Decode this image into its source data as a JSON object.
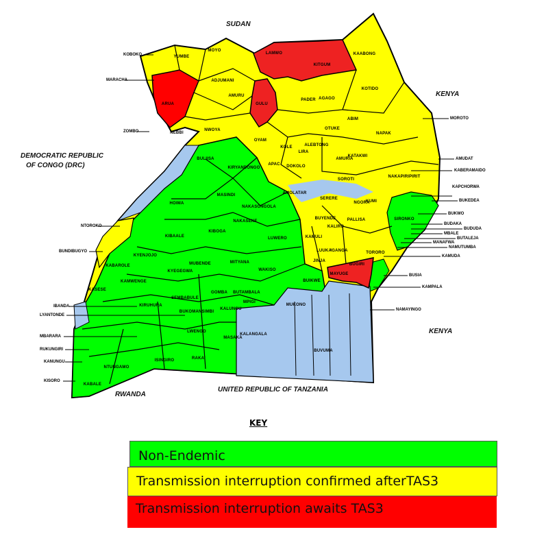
{
  "colors": {
    "non_endemic": "#00ff00",
    "confirmed": "#ffff00",
    "awaits": "#ff0000",
    "water": "#a6c8ee",
    "border": "#000000"
  },
  "countries": {
    "sudan": "SUDAN",
    "kenya_north": "KENYA",
    "kenya_south": "KENYA",
    "drc_line1": "DEMOCRATIC REPUBLIC",
    "drc_line2": "OF CONGO (DRC)",
    "tanzania": "UNITED REPUBLIC OF TANZANIA",
    "rwanda": "RWANDA"
  },
  "districts": [
    "YUMBE",
    "MOYO",
    "LAMWO",
    "KITGUM",
    "KAABONG",
    "ADJUMANI",
    "AMURU",
    "ARUA",
    "GULU",
    "NEBBI",
    "NWOYA",
    "PADER",
    "AGAGO",
    "KOTIDO",
    "ABIM",
    "OTUKE",
    "NAPAK",
    "OYAM",
    "KOLE",
    "LIRA",
    "ALEBTONG",
    "KATAKWI",
    "AMURIA",
    "APAC",
    "DOKOLO",
    "SOROTI",
    "NAKAPIRIPIRIT",
    "AMOLATAR",
    "SERERE",
    "NGORA",
    "KUMI",
    "BUYENDE",
    "PALLISA",
    "SIRONKO",
    "KALIRO",
    "KAMULI",
    "LUUKA",
    "IGANGA",
    "TORORO",
    "JINJA",
    "BUGIRI",
    "MAYUGE",
    "BUIKWE",
    "MUKONO",
    "BUVUMA",
    "KALANGALA",
    "BULIISA",
    "KIRYANDONGO",
    "MASINDI",
    "HOIMA",
    "NAKASONGOLA",
    "NAKASEKE",
    "KIBOGA",
    "LUWERO",
    "KIBAALE",
    "KYENJOJO",
    "KABAROLE",
    "KYEGEGWA",
    "MUBENDE",
    "MITYANA",
    "WAKISO",
    "KAMWENGE",
    "KASESE",
    "GOMBA",
    "BUTAMBALA",
    "MPIGI",
    "SEMBABULE",
    "KIRUHURA",
    "BUKOMANSIMBI",
    "KALUNGU",
    "LWENGO",
    "MASAKA",
    "RAKAI",
    "ISINGIRO",
    "NTUNGAMO",
    "KABALE"
  ],
  "callouts_left": [
    "KOBOKO",
    "MARACHA",
    "ZOMBO",
    "NTOROKO",
    "BUNDIBUGYO",
    "IBANDA",
    "LYANTONDE",
    "MBARARA",
    "RUKUNGIRI",
    "KANUNGU",
    "KISORO"
  ],
  "callouts_right": [
    "MOROTO",
    "AMUDAT",
    "KABERAMAIDO",
    "KAPCHORWA",
    "BUKEDEA",
    "BUKWO",
    "BUDAKA",
    "BUDUDA",
    "MBALE",
    "BUTALEJA",
    "MANAFWA",
    "NAMUTUMBA",
    "KAMUDA",
    "BUSIA",
    "KAMPALA",
    "NAMAYINGO"
  ],
  "key": {
    "title": "KEY",
    "items": [
      {
        "label": "Non-Endemic",
        "color": "#00ff00"
      },
      {
        "label": "Transmission interruption confirmed afterTAS3",
        "color": "#ffff00"
      },
      {
        "label": "Transmission interruption awaits TAS3",
        "color": "#ff0000"
      }
    ]
  }
}
